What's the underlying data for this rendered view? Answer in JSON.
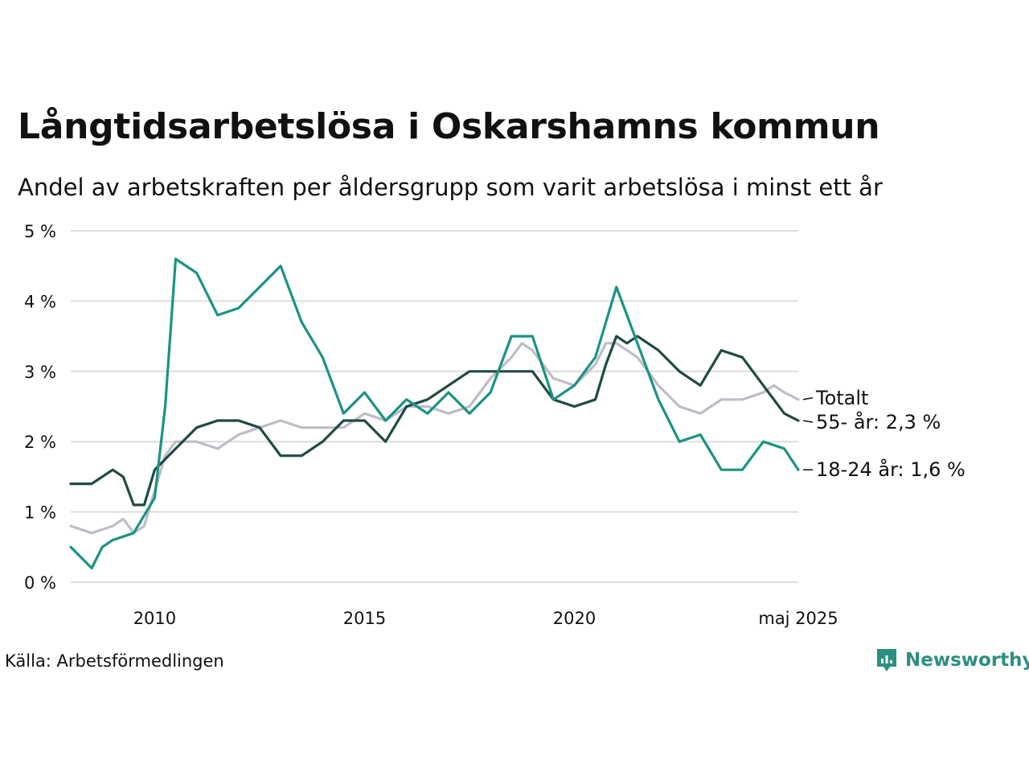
{
  "title": "Långtidsarbetslösa i Oskarshamns kommun",
  "subtitle": "Andel av arbetskraften per åldersgrupp som varit arbetslösa i minst ett år",
  "source": "Källa: Arbetsförmedlingen",
  "brand": {
    "name": "Newsworthy",
    "icon": "newsworthy-logo-icon",
    "color": "#2c8f80"
  },
  "chart_data": {
    "type": "line",
    "title": "Långtidsarbetslösa i Oskarshamns kommun",
    "subtitle": "Andel av arbetskraften per åldersgrupp som varit arbetslösa i minst ett år",
    "xlabel": "",
    "ylabel": "",
    "x_ticks": [
      "2010",
      "2015",
      "2020",
      "maj 2025"
    ],
    "y_ticks": [
      "0 %",
      "1 %",
      "2 %",
      "3 %",
      "4 %",
      "5 %"
    ],
    "ylim": [
      0,
      5
    ],
    "xlim": [
      "2008-01",
      "2025-05"
    ],
    "grid": "horizontal",
    "legend": "direct labels at line ends",
    "series": [
      {
        "name": "Totalt",
        "label": "Totalt",
        "color": "#bfbcc8",
        "points": [
          [
            "2008-01",
            0.8
          ],
          [
            "2008-07",
            0.7
          ],
          [
            "2009-01",
            0.8
          ],
          [
            "2009-04",
            0.9
          ],
          [
            "2009-07",
            0.7
          ],
          [
            "2009-10",
            0.8
          ],
          [
            "2010-01",
            1.3
          ],
          [
            "2010-04",
            1.8
          ],
          [
            "2010-07",
            2.0
          ],
          [
            "2011-01",
            2.0
          ],
          [
            "2011-07",
            1.9
          ],
          [
            "2012-01",
            2.1
          ],
          [
            "2012-07",
            2.2
          ],
          [
            "2013-01",
            2.3
          ],
          [
            "2013-07",
            2.2
          ],
          [
            "2014-01",
            2.2
          ],
          [
            "2014-07",
            2.2
          ],
          [
            "2015-01",
            2.4
          ],
          [
            "2015-07",
            2.3
          ],
          [
            "2016-01",
            2.5
          ],
          [
            "2016-07",
            2.5
          ],
          [
            "2017-01",
            2.4
          ],
          [
            "2017-07",
            2.5
          ],
          [
            "2018-01",
            2.9
          ],
          [
            "2018-07",
            3.2
          ],
          [
            "2018-10",
            3.4
          ],
          [
            "2019-01",
            3.3
          ],
          [
            "2019-07",
            2.9
          ],
          [
            "2020-01",
            2.8
          ],
          [
            "2020-07",
            3.1
          ],
          [
            "2020-10",
            3.4
          ],
          [
            "2021-01",
            3.4
          ],
          [
            "2021-07",
            3.2
          ],
          [
            "2022-01",
            2.8
          ],
          [
            "2022-07",
            2.5
          ],
          [
            "2023-01",
            2.4
          ],
          [
            "2023-07",
            2.6
          ],
          [
            "2024-01",
            2.6
          ],
          [
            "2024-07",
            2.7
          ],
          [
            "2024-10",
            2.8
          ],
          [
            "2025-01",
            2.7
          ],
          [
            "2025-05",
            2.6
          ]
        ]
      },
      {
        "name": "55- år",
        "label": "55- år: 2,3 %",
        "color": "#1f4a44",
        "points": [
          [
            "2008-01",
            1.4
          ],
          [
            "2008-07",
            1.4
          ],
          [
            "2009-01",
            1.6
          ],
          [
            "2009-04",
            1.5
          ],
          [
            "2009-07",
            1.1
          ],
          [
            "2009-10",
            1.1
          ],
          [
            "2010-01",
            1.6
          ],
          [
            "2010-07",
            1.9
          ],
          [
            "2011-01",
            2.2
          ],
          [
            "2011-07",
            2.3
          ],
          [
            "2012-01",
            2.3
          ],
          [
            "2012-07",
            2.2
          ],
          [
            "2013-01",
            1.8
          ],
          [
            "2013-07",
            1.8
          ],
          [
            "2014-01",
            2.0
          ],
          [
            "2014-07",
            2.3
          ],
          [
            "2015-01",
            2.3
          ],
          [
            "2015-07",
            2.0
          ],
          [
            "2016-01",
            2.5
          ],
          [
            "2016-07",
            2.6
          ],
          [
            "2017-01",
            2.8
          ],
          [
            "2017-07",
            3.0
          ],
          [
            "2018-01",
            3.0
          ],
          [
            "2018-07",
            3.0
          ],
          [
            "2019-01",
            3.0
          ],
          [
            "2019-07",
            2.6
          ],
          [
            "2020-01",
            2.5
          ],
          [
            "2020-07",
            2.6
          ],
          [
            "2020-10",
            3.1
          ],
          [
            "2021-01",
            3.5
          ],
          [
            "2021-04",
            3.4
          ],
          [
            "2021-07",
            3.5
          ],
          [
            "2022-01",
            3.3
          ],
          [
            "2022-07",
            3.0
          ],
          [
            "2023-01",
            2.8
          ],
          [
            "2023-07",
            3.3
          ],
          [
            "2024-01",
            3.2
          ],
          [
            "2024-07",
            2.8
          ],
          [
            "2025-01",
            2.4
          ],
          [
            "2025-05",
            2.3
          ]
        ]
      },
      {
        "name": "18-24 år",
        "label": "18-24 år: 1,6 %",
        "color": "#1b9383",
        "points": [
          [
            "2008-01",
            0.5
          ],
          [
            "2008-05",
            0.3
          ],
          [
            "2008-07",
            0.2
          ],
          [
            "2008-10",
            0.5
          ],
          [
            "2009-01",
            0.6
          ],
          [
            "2009-07",
            0.7
          ],
          [
            "2010-01",
            1.2
          ],
          [
            "2010-04",
            2.5
          ],
          [
            "2010-07",
            4.6
          ],
          [
            "2011-01",
            4.4
          ],
          [
            "2011-07",
            3.8
          ],
          [
            "2012-01",
            3.9
          ],
          [
            "2012-07",
            4.2
          ],
          [
            "2013-01",
            4.5
          ],
          [
            "2013-07",
            3.7
          ],
          [
            "2014-01",
            3.2
          ],
          [
            "2014-07",
            2.4
          ],
          [
            "2015-01",
            2.7
          ],
          [
            "2015-07",
            2.3
          ],
          [
            "2016-01",
            2.6
          ],
          [
            "2016-07",
            2.4
          ],
          [
            "2017-01",
            2.7
          ],
          [
            "2017-07",
            2.4
          ],
          [
            "2018-01",
            2.7
          ],
          [
            "2018-07",
            3.5
          ],
          [
            "2019-01",
            3.5
          ],
          [
            "2019-07",
            2.6
          ],
          [
            "2020-01",
            2.8
          ],
          [
            "2020-07",
            3.2
          ],
          [
            "2021-01",
            4.2
          ],
          [
            "2021-07",
            3.4
          ],
          [
            "2022-01",
            2.6
          ],
          [
            "2022-07",
            2.0
          ],
          [
            "2023-01",
            2.1
          ],
          [
            "2023-07",
            1.6
          ],
          [
            "2024-01",
            1.6
          ],
          [
            "2024-07",
            2.0
          ],
          [
            "2025-01",
            1.9
          ],
          [
            "2025-05",
            1.6
          ]
        ]
      }
    ]
  }
}
